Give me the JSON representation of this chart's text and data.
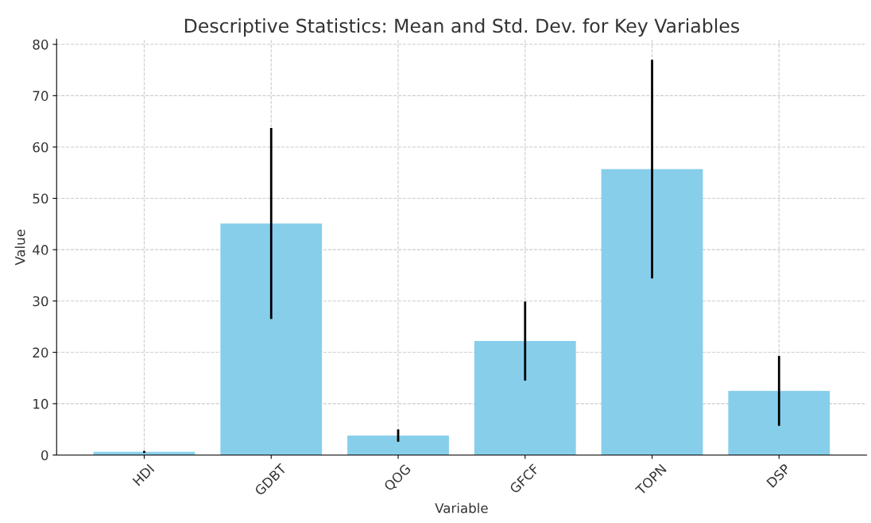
{
  "chart_data": {
    "type": "bar",
    "title": "Descriptive Statistics: Mean and Std. Dev. for Key Variables",
    "xlabel": "Variable",
    "ylabel": "Value",
    "categories": [
      "HDI",
      "GDBT",
      "QOG",
      "GFCF",
      "TOPN",
      "DSP"
    ],
    "values": [
      0.6,
      45.1,
      3.8,
      22.2,
      55.7,
      12.5
    ],
    "errors": [
      0.2,
      18.6,
      1.2,
      7.7,
      21.3,
      6.8
    ],
    "color": "#87ceeb",
    "ylim": [
      0,
      81
    ],
    "yticks": [
      0,
      10,
      20,
      30,
      40,
      50,
      60,
      70,
      80
    ],
    "grid": true
  }
}
